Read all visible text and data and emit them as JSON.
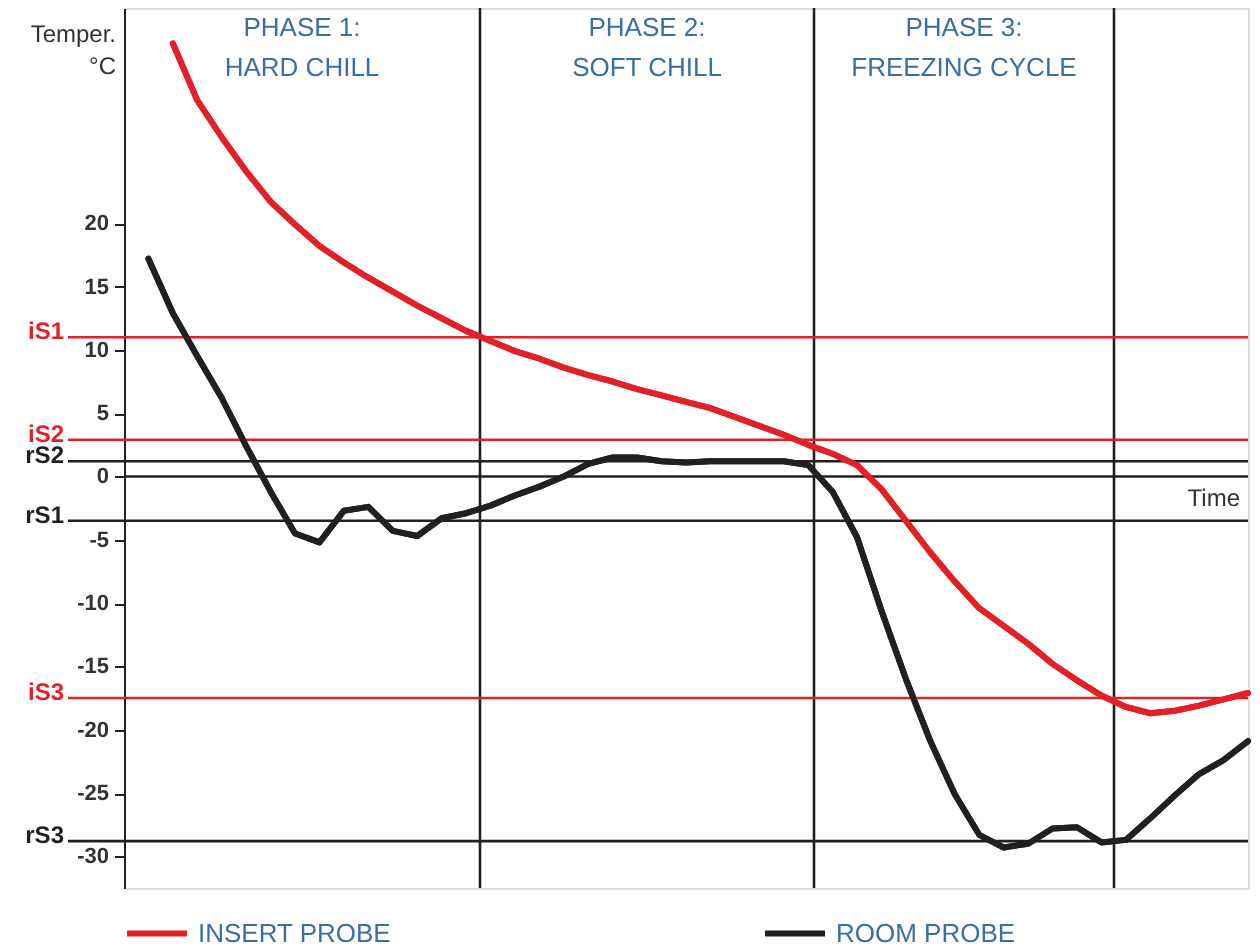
{
  "chart_data": {
    "type": "line",
    "ylabel": "Temper.\n°C",
    "xlabel": "Time",
    "categories": [
      null,
      null,
      null,
      null,
      null,
      null,
      null,
      null,
      null,
      null,
      null,
      null,
      null,
      null,
      null,
      null,
      null,
      null,
      null,
      null,
      null,
      null,
      null,
      null,
      null,
      null,
      null,
      null,
      null,
      null,
      null,
      null,
      null,
      null,
      null,
      null,
      null,
      null,
      null,
      null,
      null,
      null,
      null,
      null,
      null,
      null,
      null
    ],
    "ylim": [
      -32.5,
      37
    ],
    "yticks": [
      -30,
      -25,
      -20,
      -15,
      -10,
      -5,
      0,
      5,
      10,
      15,
      20
    ],
    "tick_labels": "y",
    "grid": false,
    "legend": "bottom",
    "line_style": "solid",
    "marker": "none",
    "series": [
      {
        "name": "INSERT PROBE",
        "color": "#e32026",
        "values": [
          null,
          null,
          34.2,
          29.7,
          26.8,
          24.1,
          21.7,
          19.9,
          18.2,
          16.9,
          15.7,
          14.6,
          13.5,
          12.5,
          11.5,
          10.7,
          9.9,
          9.3,
          8.6,
          8.0,
          7.5,
          6.9,
          6.4,
          5.9,
          5.4,
          4.7,
          4.0,
          3.3,
          2.5,
          1.8,
          0.9,
          -1.0,
          -3.5,
          -6.0,
          -8.3,
          -10.4,
          -11.8,
          -13.2,
          -14.8,
          -16.1,
          -17.3,
          -18.2,
          -18.7,
          -18.5,
          -18.1,
          -17.6,
          -17.1
        ]
      },
      {
        "name": "ROOM PROBE",
        "color": "#231f20",
        "values": [
          null,
          17.2,
          12.9,
          9.5,
          6.2,
          2.4,
          -1.2,
          -4.5,
          -5.2,
          -2.7,
          -2.4,
          -4.3,
          -4.7,
          -3.3,
          -2.9,
          -2.3,
          -1.5,
          -0.8,
          0.0,
          1.0,
          1.5,
          1.5,
          1.2,
          1.1,
          1.2,
          1.2,
          1.2,
          1.2,
          0.9,
          -1.2,
          -4.8,
          -10.6,
          -16.0,
          -20.9,
          -25.1,
          -28.3,
          -29.3,
          -29.0,
          -27.8,
          -27.7,
          -28.9,
          -28.7,
          -27.0,
          -25.2,
          -23.5,
          -22.4,
          -20.9
        ]
      }
    ],
    "ref_lines": [
      {
        "axis": "y",
        "value": 11,
        "label": "iS1",
        "color": "#e32026"
      },
      {
        "axis": "y",
        "value": 2.9,
        "label": "iS2",
        "color": "#e32026"
      },
      {
        "axis": "y",
        "value": 1.2,
        "label": "rS2",
        "color": "#231f20"
      },
      {
        "axis": "y",
        "value": 0,
        "color": "#231f20"
      },
      {
        "axis": "y",
        "value": -3.5,
        "label": "rS1",
        "color": "#231f20"
      },
      {
        "axis": "y",
        "value": -17.5,
        "label": "iS3",
        "color": "#e32026"
      },
      {
        "axis": "y",
        "value": -28.8,
        "label": "rS3",
        "color": "#231f20"
      }
    ],
    "annotations": [
      "PHASE 1:\nHARD CHILL",
      "PHASE 2:\nSOFT CHILL",
      "PHASE 3:\nFREEZING CYCLE"
    ]
  }
}
